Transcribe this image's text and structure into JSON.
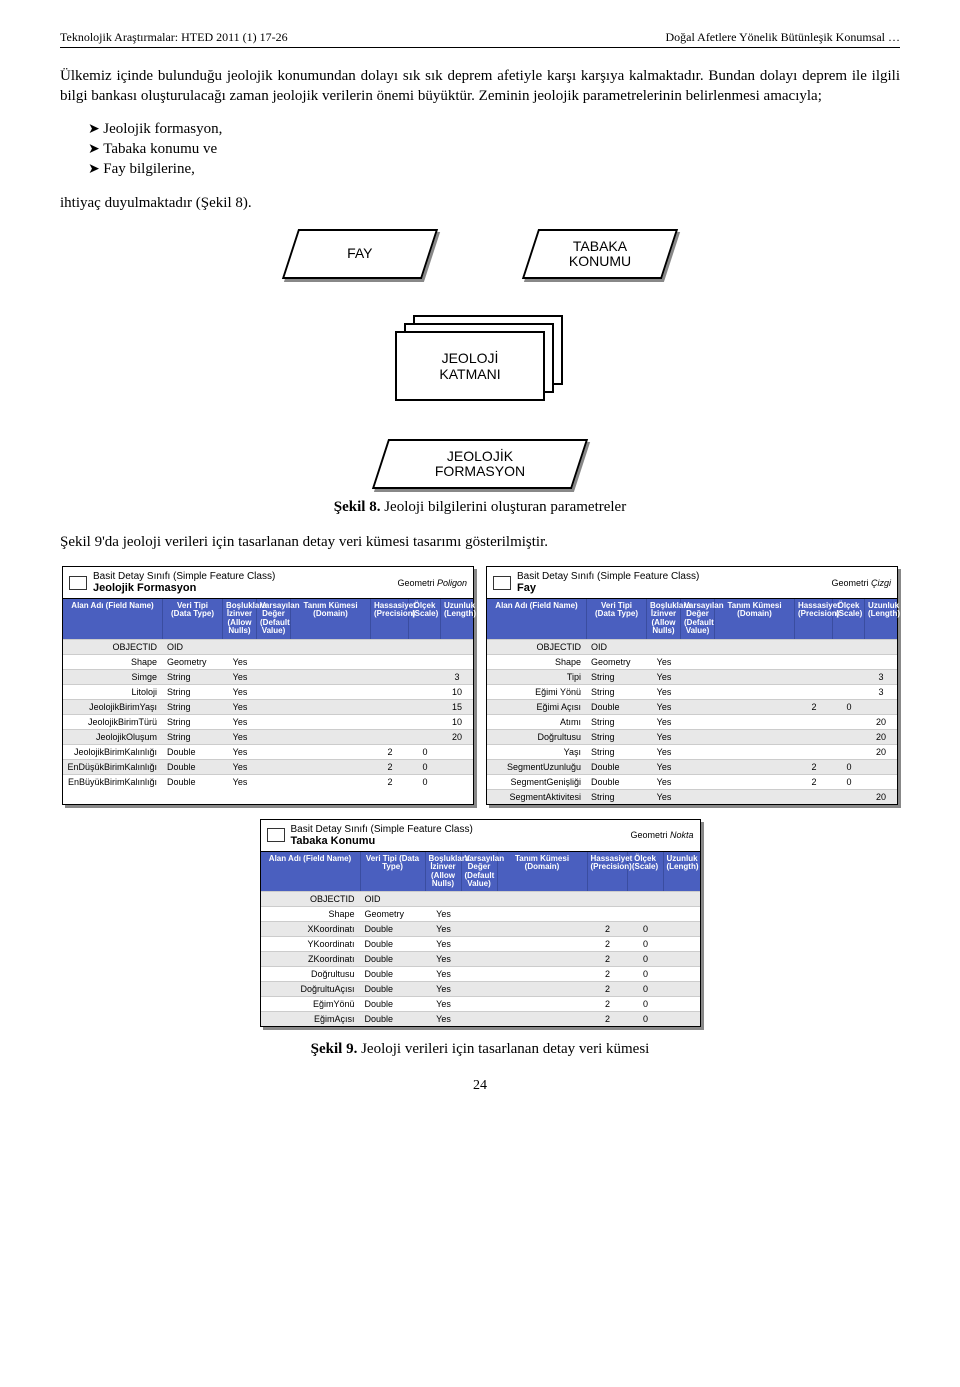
{
  "header": {
    "left": "Teknolojik Araştırmalar: HTED 2011 (1) 17-26",
    "right": "Doğal Afetlere Yönelik Bütünleşik Konumsal …"
  },
  "para1": "Ülkemiz içinde bulunduğu jeolojik konumundan dolayı sık sık deprem afetiyle karşı karşıya kalmaktadır. Bundan dolayı deprem ile ilgili bilgi bankası oluşturulacağı zaman jeolojik verilerin önemi büyüktür. Zeminin jeolojik parametrelerinin belirlenmesi amacıyla;",
  "bullets": [
    "Jeolojik formasyon,",
    "Tabaka konumu ve",
    "Fay bilgilerine,"
  ],
  "para2": "ihtiyaç duyulmaktadır (Şekil 8).",
  "diagram": {
    "fay": "FAY",
    "tabaka": "TABAKA\nKONUMU",
    "katman": "JEOLOJİ\nKATMANI",
    "formasyon": "JEOLOJİK\nFORMASYON"
  },
  "caption8": "Şekil 8. Jeoloji bilgilerini oluşturan parametreler",
  "para3": "Şekil 9'da jeoloji verileri için tasarlanan detay veri kümesi tasarımı gösterilmiştir.",
  "caption9": "Şekil 9. Jeoloji verileri için tasarlanan detay veri kümesi",
  "pagenum": "24",
  "colheaders": {
    "c1": "Alan Adı (Field Name)",
    "c2": "Veri Tipi (Data Type)",
    "c3": "Boşluklara İzinver (Allow Nulls)",
    "c4": "Varsayılan Değer (Default Value)",
    "c5": "Tanım Kümesi (Domain)",
    "c6": "Hassasiyet (Precision)",
    "c7": "Ölçek (Scale)",
    "c8": "Uzunluk (Length)"
  },
  "feat_title_prefix": "Basit Detay Sınıfı (Simple Feature Class)",
  "geom_label": "Geometri",
  "table1": {
    "name": "Jeolojik Formasyon",
    "geom": "Poligon",
    "rows": [
      {
        "f": "OBJECTID",
        "t": "OID",
        "a": "",
        "d": "",
        "dom": "",
        "p": "",
        "s": "",
        "l": ""
      },
      {
        "f": "Shape",
        "t": "Geometry",
        "a": "Yes",
        "d": "",
        "dom": "",
        "p": "",
        "s": "",
        "l": ""
      },
      {
        "f": "Simge",
        "t": "String",
        "a": "Yes",
        "d": "",
        "dom": "",
        "p": "",
        "s": "",
        "l": "3"
      },
      {
        "f": "Litoloji",
        "t": "String",
        "a": "Yes",
        "d": "",
        "dom": "",
        "p": "",
        "s": "",
        "l": "10"
      },
      {
        "f": "JeolojikBirimYaşı",
        "t": "String",
        "a": "Yes",
        "d": "",
        "dom": "",
        "p": "",
        "s": "",
        "l": "15"
      },
      {
        "f": "JeolojikBirimTürü",
        "t": "String",
        "a": "Yes",
        "d": "",
        "dom": "",
        "p": "",
        "s": "",
        "l": "10"
      },
      {
        "f": "JeolojikOluşum",
        "t": "String",
        "a": "Yes",
        "d": "",
        "dom": "",
        "p": "",
        "s": "",
        "l": "20"
      },
      {
        "f": "JeolojikBirimKalınlığı",
        "t": "Double",
        "a": "Yes",
        "d": "",
        "dom": "",
        "p": "2",
        "s": "0",
        "l": ""
      },
      {
        "f": "EnDüşükBirimKalınlığı",
        "t": "Double",
        "a": "Yes",
        "d": "",
        "dom": "",
        "p": "2",
        "s": "0",
        "l": ""
      },
      {
        "f": "EnBüyükBirimKalınlığı",
        "t": "Double",
        "a": "Yes",
        "d": "",
        "dom": "",
        "p": "2",
        "s": "0",
        "l": ""
      }
    ]
  },
  "table2": {
    "name": "Fay",
    "geom": "Çizgi",
    "rows": [
      {
        "f": "OBJECTID",
        "t": "OID",
        "a": "",
        "d": "",
        "dom": "",
        "p": "",
        "s": "",
        "l": ""
      },
      {
        "f": "Shape",
        "t": "Geometry",
        "a": "Yes",
        "d": "",
        "dom": "",
        "p": "",
        "s": "",
        "l": ""
      },
      {
        "f": "Tipi",
        "t": "String",
        "a": "Yes",
        "d": "",
        "dom": "",
        "p": "",
        "s": "",
        "l": "3"
      },
      {
        "f": "Eğimi Yönü",
        "t": "String",
        "a": "Yes",
        "d": "",
        "dom": "",
        "p": "",
        "s": "",
        "l": "3"
      },
      {
        "f": "Eğimi Açısı",
        "t": "Double",
        "a": "Yes",
        "d": "",
        "dom": "",
        "p": "2",
        "s": "0",
        "l": ""
      },
      {
        "f": "Atımı",
        "t": "String",
        "a": "Yes",
        "d": "",
        "dom": "",
        "p": "",
        "s": "",
        "l": "20"
      },
      {
        "f": "Doğrultusu",
        "t": "String",
        "a": "Yes",
        "d": "",
        "dom": "",
        "p": "",
        "s": "",
        "l": "20"
      },
      {
        "f": "Yaşı",
        "t": "String",
        "a": "Yes",
        "d": "",
        "dom": "",
        "p": "",
        "s": "",
        "l": "20"
      },
      {
        "f": "SegmentUzunluğu",
        "t": "Double",
        "a": "Yes",
        "d": "",
        "dom": "",
        "p": "2",
        "s": "0",
        "l": ""
      },
      {
        "f": "SegmentGenişliği",
        "t": "Double",
        "a": "Yes",
        "d": "",
        "dom": "",
        "p": "2",
        "s": "0",
        "l": ""
      },
      {
        "f": "SegmentAktivitesi",
        "t": "String",
        "a": "Yes",
        "d": "",
        "dom": "",
        "p": "",
        "s": "",
        "l": "20"
      }
    ]
  },
  "table3": {
    "name": "Tabaka Konumu",
    "geom": "Nokta",
    "rows": [
      {
        "f": "OBJECTID",
        "t": "OID",
        "a": "",
        "d": "",
        "dom": "",
        "p": "",
        "s": "",
        "l": ""
      },
      {
        "f": "Shape",
        "t": "Geometry",
        "a": "Yes",
        "d": "",
        "dom": "",
        "p": "",
        "s": "",
        "l": ""
      },
      {
        "f": "XKoordinatı",
        "t": "Double",
        "a": "Yes",
        "d": "",
        "dom": "",
        "p": "2",
        "s": "0",
        "l": ""
      },
      {
        "f": "YKoordinatı",
        "t": "Double",
        "a": "Yes",
        "d": "",
        "dom": "",
        "p": "2",
        "s": "0",
        "l": ""
      },
      {
        "f": "ZKoordinatı",
        "t": "Double",
        "a": "Yes",
        "d": "",
        "dom": "",
        "p": "2",
        "s": "0",
        "l": ""
      },
      {
        "f": "Doğrultusu",
        "t": "Double",
        "a": "Yes",
        "d": "",
        "dom": "",
        "p": "2",
        "s": "0",
        "l": ""
      },
      {
        "f": "DoğrultuAçısı",
        "t": "Double",
        "a": "Yes",
        "d": "",
        "dom": "",
        "p": "2",
        "s": "0",
        "l": ""
      },
      {
        "f": "EğimYönü",
        "t": "Double",
        "a": "Yes",
        "d": "",
        "dom": "",
        "p": "2",
        "s": "0",
        "l": ""
      },
      {
        "f": "EğimAçısı",
        "t": "Double",
        "a": "Yes",
        "d": "",
        "dom": "",
        "p": "2",
        "s": "0",
        "l": ""
      }
    ]
  },
  "colors": {
    "header_bg": "#4a5fbf",
    "header_fg": "#ffffff",
    "alt_row": "#e8e8e8",
    "shadow": "#888888"
  }
}
